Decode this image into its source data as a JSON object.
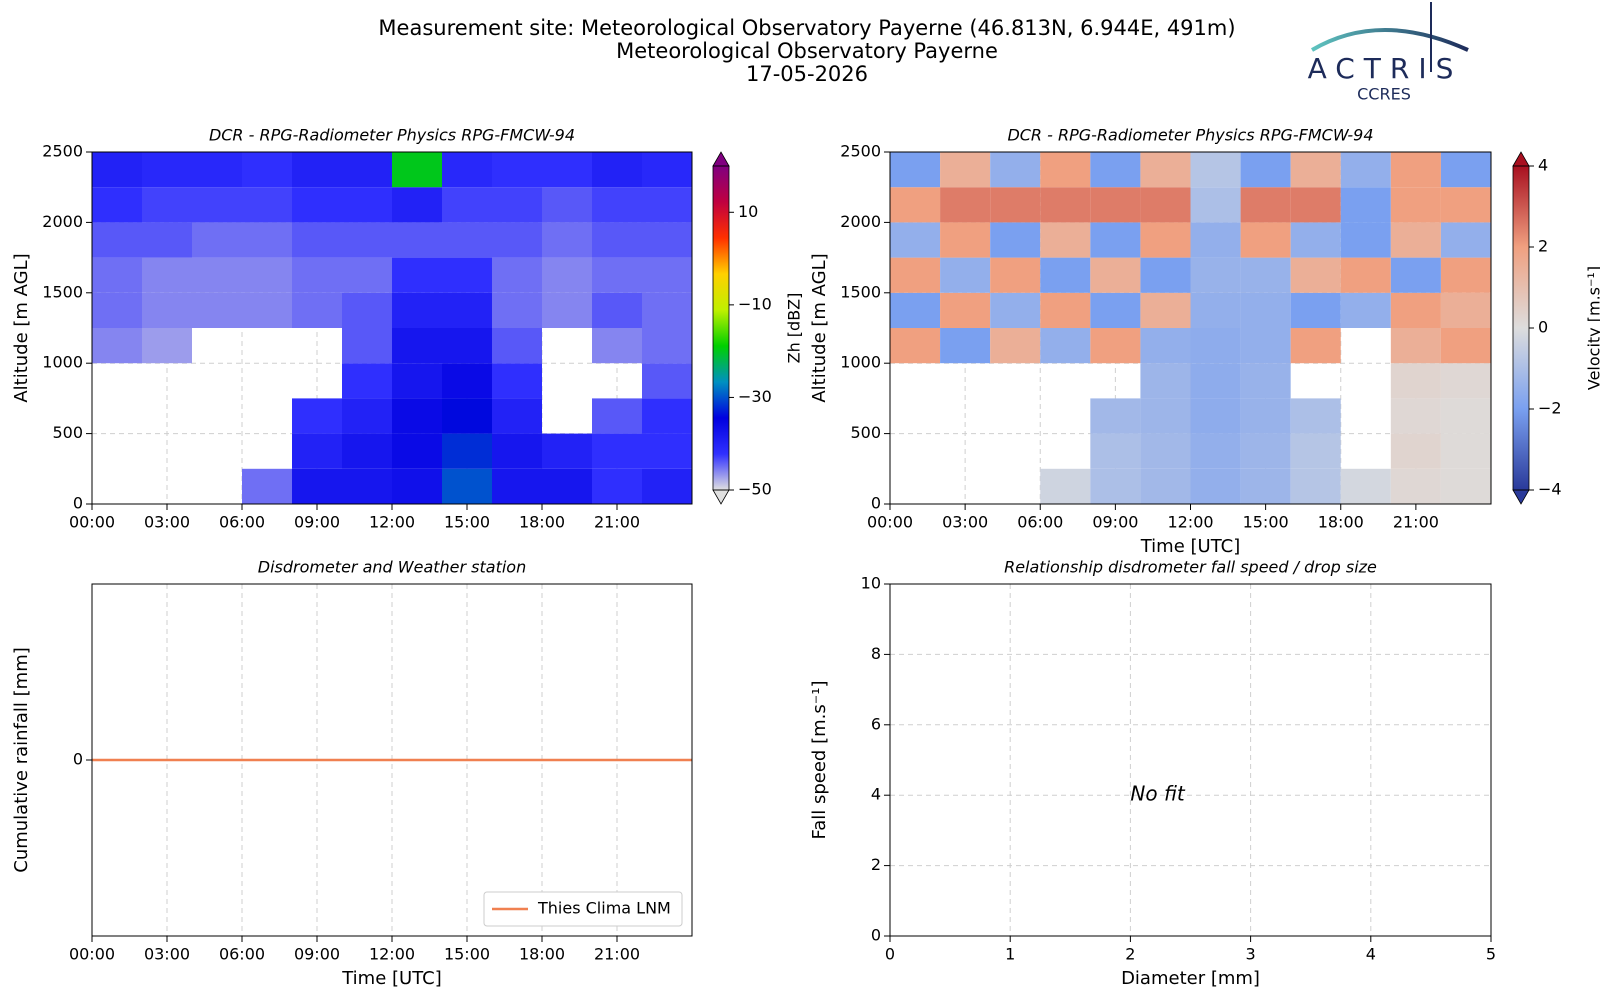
{
  "header": {
    "title": "Measurement site: Meteorological Observatory Payerne (46.813N, 6.944E, 491m)",
    "subtitle": "Meteorological Observatory Payerne",
    "date": "17-05-2026"
  },
  "logo": {
    "name": "ACTRIS",
    "sub": "CCRES"
  },
  "chart_data": [
    {
      "type": "heatmap",
      "title": "DCR - RPG-Radiometer Physics RPG-FMCW-94",
      "ylabel": "Altitude [m AGL]",
      "xlim": [
        0,
        24
      ],
      "xticks": [
        {
          "value": 0,
          "label": "00:00"
        },
        {
          "value": 3,
          "label": "03:00"
        },
        {
          "value": 6,
          "label": "06:00"
        },
        {
          "value": 9,
          "label": "09:00"
        },
        {
          "value": 12,
          "label": "12:00"
        },
        {
          "value": 15,
          "label": "15:00"
        },
        {
          "value": 18,
          "label": "18:00"
        },
        {
          "value": 21,
          "label": "21:00"
        }
      ],
      "ylim": [
        0,
        2500
      ],
      "yticks": [
        0,
        500,
        1000,
        1500,
        2000,
        2500
      ],
      "grid": true,
      "x": [
        1,
        3,
        5,
        7,
        9,
        11,
        13,
        15,
        17,
        19,
        21,
        23
      ],
      "y": [
        125,
        375,
        625,
        875,
        1125,
        1375,
        1625,
        1875,
        2125,
        2375
      ],
      "values": [
        [
          null,
          null,
          null,
          -45,
          -38,
          -38,
          -37,
          -30,
          -38,
          -38,
          -42,
          -40
        ],
        [
          null,
          null,
          null,
          null,
          -40,
          -38,
          -36,
          -32,
          -38,
          -40,
          -42,
          -42
        ],
        [
          null,
          null,
          null,
          null,
          -42,
          -40,
          -36,
          -34,
          -40,
          null,
          -44,
          -42
        ],
        [
          null,
          null,
          null,
          null,
          null,
          -42,
          -38,
          -36,
          -42,
          null,
          null,
          -44
        ],
        [
          -46,
          -47,
          null,
          null,
          null,
          -44,
          -38,
          -38,
          -44,
          null,
          -46,
          -45
        ],
        [
          -45,
          -46,
          -46,
          -46,
          -45,
          -44,
          -40,
          -40,
          -45,
          -46,
          -44,
          -45
        ],
        [
          -45,
          -46,
          -46,
          -46,
          -45,
          -45,
          -42,
          -42,
          -45,
          -46,
          -45,
          -45
        ],
        [
          -44,
          -44,
          -45,
          -45,
          -44,
          -44,
          -44,
          -44,
          -44,
          -45,
          -44,
          -44
        ],
        [
          -42,
          -43,
          -43,
          -43,
          -42,
          -42,
          -40,
          -43,
          -43,
          -44,
          -43,
          -43
        ],
        [
          -40,
          -41,
          -41,
          -42,
          -40,
          -40,
          -20,
          -41,
          -42,
          -42,
          -40,
          -41
        ]
      ],
      "colorbar": {
        "label": "Zh [dBZ]",
        "lim": [
          -50,
          20
        ],
        "ticks": [
          {
            "value": -50,
            "label": "−50"
          },
          {
            "value": -30,
            "label": "−30"
          },
          {
            "value": -10,
            "label": "−10"
          },
          10
        ],
        "colors": [
          "#e0e0e0",
          "#3030ff",
          "#0000e0",
          "#0090c0",
          "#00d000",
          "#c0f000",
          "#ffd000",
          "#ff3000",
          "#c00040",
          "#800080"
        ]
      }
    },
    {
      "type": "heatmap",
      "title": "DCR - RPG-Radiometer Physics RPG-FMCW-94",
      "ylabel": "Altitude [m AGL]",
      "xlabel": "Time [UTC]",
      "xlim": [
        0,
        24
      ],
      "xticks": [
        {
          "value": 0,
          "label": "00:00"
        },
        {
          "value": 3,
          "label": "03:00"
        },
        {
          "value": 6,
          "label": "06:00"
        },
        {
          "value": 9,
          "label": "09:00"
        },
        {
          "value": 12,
          "label": "12:00"
        },
        {
          "value": 15,
          "label": "15:00"
        },
        {
          "value": 18,
          "label": "18:00"
        },
        {
          "value": 21,
          "label": "21:00"
        }
      ],
      "ylim": [
        0,
        2500
      ],
      "yticks": [
        0,
        500,
        1000,
        1500,
        2000,
        2500
      ],
      "grid": true,
      "x": [
        1,
        3,
        5,
        7,
        9,
        11,
        13,
        15,
        17,
        19,
        21,
        23
      ],
      "y": [
        125,
        375,
        625,
        875,
        1125,
        1375,
        1625,
        1875,
        2125,
        2375
      ],
      "values": [
        [
          null,
          null,
          null,
          -0.3,
          -1,
          -1.2,
          -1.5,
          -1.3,
          -0.8,
          -0.2,
          0.2,
          0.1
        ],
        [
          null,
          null,
          null,
          null,
          -1,
          -1.2,
          -1.5,
          -1.3,
          -0.8,
          null,
          0.3,
          0.1
        ],
        [
          null,
          null,
          null,
          null,
          -1.2,
          -1.3,
          -1.6,
          -1.4,
          -1,
          null,
          0.2,
          0.1
        ],
        [
          null,
          null,
          null,
          null,
          null,
          -1.3,
          -1.6,
          -1.4,
          null,
          null,
          0.3,
          0.2
        ],
        [
          2,
          -2,
          1.5,
          -1.5,
          2,
          -1.5,
          -1.6,
          -1.5,
          2,
          null,
          1.5,
          2
        ],
        [
          -2,
          2,
          -1.5,
          2,
          -2,
          1.5,
          -1.5,
          -1.5,
          -2,
          -1.5,
          2,
          1.5
        ],
        [
          2,
          -1.5,
          2,
          -2,
          1.5,
          -2,
          -1.4,
          -1.4,
          1.5,
          2,
          -2,
          2
        ],
        [
          -1.5,
          2,
          -2,
          1.5,
          -2,
          2,
          -1.5,
          2,
          -1.5,
          -2,
          1.5,
          -1.5
        ],
        [
          2,
          2.5,
          2.5,
          2.5,
          2.5,
          2.5,
          -1,
          2.5,
          2.5,
          -2,
          2,
          2
        ],
        [
          -2,
          1.5,
          -1.5,
          2,
          -2,
          1.5,
          -0.8,
          -2,
          1.5,
          -1.5,
          2,
          -2
        ]
      ],
      "colorbar": {
        "label": "Velocity [m.s⁻¹]",
        "lim": [
          -4,
          4
        ],
        "ticks": [
          {
            "value": -4,
            "label": "−4"
          },
          {
            "value": -2,
            "label": "−2"
          },
          0,
          2,
          4
        ],
        "colors": [
          "#2a3a9a",
          "#7aa0f0",
          "#dddddd",
          "#f0a080",
          "#a81020"
        ]
      }
    },
    {
      "type": "line",
      "title": "Disdrometer and Weather station",
      "ylabel": "Cumulative rainfall [mm]",
      "xlabel": "Time [UTC]",
      "xlim": [
        0,
        24
      ],
      "xticks": [
        {
          "value": 0,
          "label": "00:00"
        },
        {
          "value": 3,
          "label": "03:00"
        },
        {
          "value": 6,
          "label": "06:00"
        },
        {
          "value": 9,
          "label": "09:00"
        },
        {
          "value": 12,
          "label": "12:00"
        },
        {
          "value": 15,
          "label": "15:00"
        },
        {
          "value": 18,
          "label": "18:00"
        },
        {
          "value": 21,
          "label": "21:00"
        }
      ],
      "ylim": [
        -1,
        1
      ],
      "yticks": [
        0
      ],
      "grid": true,
      "legend": "lower right",
      "x": [
        0,
        24
      ],
      "series": [
        {
          "name": "Thies Clima LNM",
          "color": "#f08050",
          "values": [
            0,
            0
          ]
        }
      ]
    },
    {
      "type": "scatter",
      "title": "Relationship disdrometer fall speed / drop size",
      "ylabel": "Fall speed [m.s⁻¹]",
      "xlabel": "Diameter [mm]",
      "xlim": [
        0,
        5
      ],
      "xticks": [
        0,
        1,
        2,
        3,
        4,
        5
      ],
      "ylim": [
        0,
        10
      ],
      "yticks": [
        0,
        2,
        4,
        6,
        8,
        10
      ],
      "grid": true,
      "annotations": [
        {
          "text": "No fit",
          "x": 2,
          "y": 4
        }
      ]
    }
  ]
}
